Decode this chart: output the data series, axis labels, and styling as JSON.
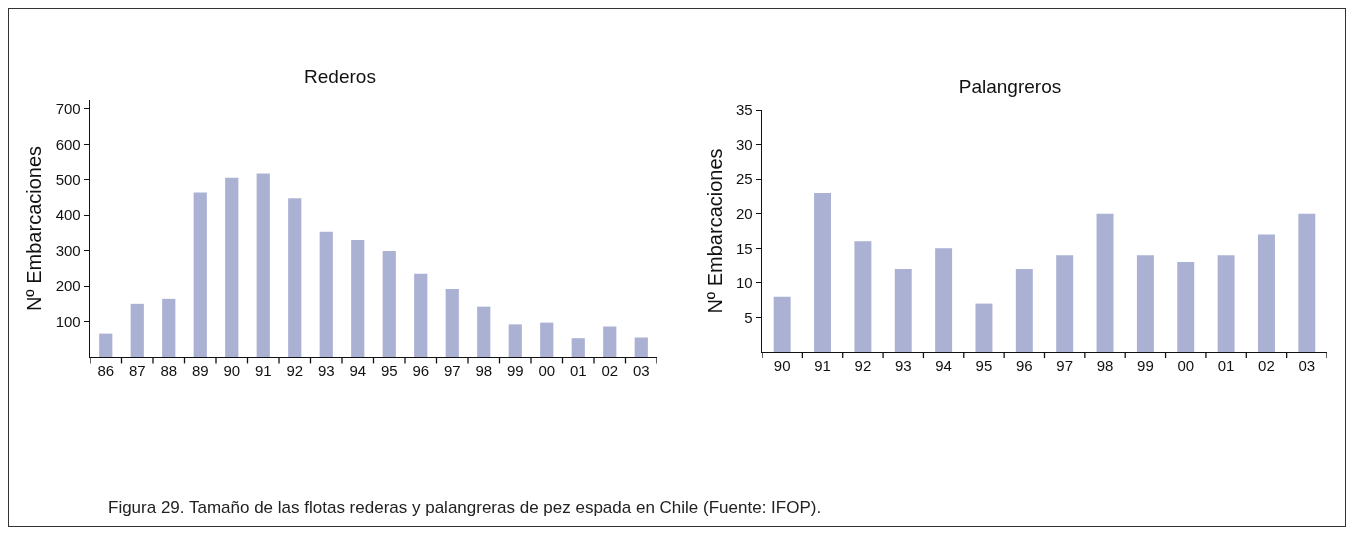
{
  "chart_data": [
    {
      "type": "bar",
      "title": "Rederos",
      "ylabel": "Nº Embarcaciones",
      "categories": [
        "86",
        "87",
        "88",
        "89",
        "90",
        "91",
        "92",
        "93",
        "94",
        "95",
        "96",
        "97",
        "98",
        "99",
        "00",
        "01",
        "02",
        "03"
      ],
      "values": [
        66,
        150,
        164,
        464,
        506,
        518,
        448,
        353,
        330,
        299,
        235,
        192,
        142,
        92,
        97,
        53,
        86,
        55
      ],
      "color": "#aab1d3",
      "ylim": [
        0,
        725
      ],
      "yticks": [
        100,
        200,
        300,
        400,
        500,
        600,
        700
      ],
      "grid": false,
      "legend": false,
      "annotations": [
        "Figura 29. Tamaño de las flotas rederas y palangreras de pez espada en Chile (Fuente: IFOP)."
      ]
    },
    {
      "type": "bar",
      "title": "Palangreros",
      "ylabel": "Nº Embarcaciones",
      "categories": [
        "90",
        "91",
        "92",
        "93",
        "94",
        "95",
        "96",
        "97",
        "98",
        "99",
        "00",
        "01",
        "02",
        "03"
      ],
      "values": [
        8,
        23,
        16,
        12,
        15,
        7,
        12,
        14,
        20,
        14,
        13,
        14,
        17,
        20
      ],
      "color": "#aab1d3",
      "ylim": [
        0,
        35
      ],
      "yticks": [
        5,
        10,
        15,
        20,
        25,
        30,
        35
      ],
      "grid": false,
      "legend": false
    }
  ]
}
